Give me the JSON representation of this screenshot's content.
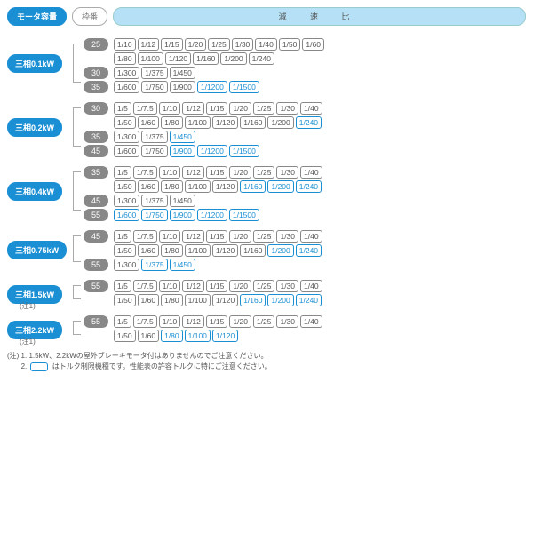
{
  "header": {
    "motor": "モータ容量",
    "frame": "枠番",
    "ratio": "減 速 比"
  },
  "groups": [
    {
      "motor": "三相0.1kW",
      "motorTop": 18,
      "note1": false,
      "connTop": 6,
      "connH": 42,
      "frames": [
        {
          "num": "25",
          "rows": [
            [
              {
                "v": "1/10"
              },
              {
                "v": "1/12"
              },
              {
                "v": "1/15"
              },
              {
                "v": "1/20"
              },
              {
                "v": "1/25"
              },
              {
                "v": "1/30"
              },
              {
                "v": "1/40"
              },
              {
                "v": "1/50"
              },
              {
                "v": "1/60"
              }
            ],
            [
              {
                "v": "1/80"
              },
              {
                "v": "1/100"
              },
              {
                "v": "1/120"
              },
              {
                "v": "1/160"
              },
              {
                "v": "1/200"
              },
              {
                "v": "1/240"
              }
            ]
          ]
        },
        {
          "num": "30",
          "rows": [
            [
              {
                "v": "1/300"
              },
              {
                "v": "1/375"
              },
              {
                "v": "1/450"
              }
            ]
          ]
        },
        {
          "num": "35",
          "rows": [
            [
              {
                "v": "1/600"
              },
              {
                "v": "1/750"
              },
              {
                "v": "1/900"
              },
              {
                "v": "1/1200",
                "h": 1
              },
              {
                "v": "1/1500",
                "h": 1
              }
            ]
          ]
        }
      ]
    },
    {
      "motor": "三相0.2kW",
      "motorTop": 18,
      "note1": false,
      "connTop": 6,
      "connH": 42,
      "frames": [
        {
          "num": "30",
          "rows": [
            [
              {
                "v": "1/5"
              },
              {
                "v": "1/7.5"
              },
              {
                "v": "1/10"
              },
              {
                "v": "1/12"
              },
              {
                "v": "1/15"
              },
              {
                "v": "1/20"
              },
              {
                "v": "1/25"
              },
              {
                "v": "1/30"
              },
              {
                "v": "1/40"
              }
            ],
            [
              {
                "v": "1/50"
              },
              {
                "v": "1/60"
              },
              {
                "v": "1/80"
              },
              {
                "v": "1/100"
              },
              {
                "v": "1/120"
              },
              {
                "v": "1/160"
              },
              {
                "v": "1/200"
              },
              {
                "v": "1/240",
                "h": 1
              }
            ]
          ]
        },
        {
          "num": "35",
          "rows": [
            [
              {
                "v": "1/300"
              },
              {
                "v": "1/375"
              },
              {
                "v": "1/450",
                "h": 1
              }
            ]
          ]
        },
        {
          "num": "45",
          "rows": [
            [
              {
                "v": "1/600"
              },
              {
                "v": "1/750"
              },
              {
                "v": "1/900",
                "h": 1
              },
              {
                "v": "1/1200",
                "h": 1
              },
              {
                "v": "1/1500",
                "h": 1
              }
            ]
          ]
        }
      ]
    },
    {
      "motor": "三相0.4kW",
      "motorTop": 18,
      "note1": false,
      "connTop": 6,
      "connH": 42,
      "frames": [
        {
          "num": "35",
          "rows": [
            [
              {
                "v": "1/5"
              },
              {
                "v": "1/7.5"
              },
              {
                "v": "1/10"
              },
              {
                "v": "1/12"
              },
              {
                "v": "1/15"
              },
              {
                "v": "1/20"
              },
              {
                "v": "1/25"
              },
              {
                "v": "1/30"
              },
              {
                "v": "1/40"
              }
            ],
            [
              {
                "v": "1/50"
              },
              {
                "v": "1/60"
              },
              {
                "v": "1/80"
              },
              {
                "v": "1/100"
              },
              {
                "v": "1/120"
              },
              {
                "v": "1/160",
                "h": 1
              },
              {
                "v": "1/200",
                "h": 1
              },
              {
                "v": "1/240",
                "h": 1
              }
            ]
          ]
        },
        {
          "num": "45",
          "rows": [
            [
              {
                "v": "1/300"
              },
              {
                "v": "1/375"
              },
              {
                "v": "1/450"
              }
            ]
          ]
        },
        {
          "num": "55",
          "rows": [
            [
              {
                "v": "1/600",
                "h": 1
              },
              {
                "v": "1/750",
                "h": 1
              },
              {
                "v": "1/900",
                "h": 1
              },
              {
                "v": "1/1200",
                "h": 1
              },
              {
                "v": "1/1500",
                "h": 1
              }
            ]
          ]
        }
      ]
    },
    {
      "motor": "三相0.75kW",
      "motorTop": 12,
      "note1": false,
      "connTop": 6,
      "connH": 28,
      "frames": [
        {
          "num": "45",
          "rows": [
            [
              {
                "v": "1/5"
              },
              {
                "v": "1/7.5"
              },
              {
                "v": "1/10"
              },
              {
                "v": "1/12"
              },
              {
                "v": "1/15"
              },
              {
                "v": "1/20"
              },
              {
                "v": "1/25"
              },
              {
                "v": "1/30"
              },
              {
                "v": "1/40"
              }
            ],
            [
              {
                "v": "1/50"
              },
              {
                "v": "1/60"
              },
              {
                "v": "1/80"
              },
              {
                "v": "1/100"
              },
              {
                "v": "1/120"
              },
              {
                "v": "1/160"
              },
              {
                "v": "1/200",
                "h": 1
              },
              {
                "v": "1/240",
                "h": 1
              }
            ]
          ]
        },
        {
          "num": "55",
          "rows": [
            [
              {
                "v": "1/300"
              },
              {
                "v": "1/375",
                "h": 1
              },
              {
                "v": "1/450",
                "h": 1
              }
            ]
          ]
        }
      ]
    },
    {
      "motor": "三相1.5kW",
      "motorTop": 6,
      "note1": true,
      "connTop": 6,
      "connH": 14,
      "frames": [
        {
          "num": "55",
          "rows": [
            [
              {
                "v": "1/5"
              },
              {
                "v": "1/7.5"
              },
              {
                "v": "1/10"
              },
              {
                "v": "1/12"
              },
              {
                "v": "1/15"
              },
              {
                "v": "1/20"
              },
              {
                "v": "1/25"
              },
              {
                "v": "1/30"
              },
              {
                "v": "1/40"
              }
            ],
            [
              {
                "v": "1/50"
              },
              {
                "v": "1/60"
              },
              {
                "v": "1/80"
              },
              {
                "v": "1/100"
              },
              {
                "v": "1/120"
              },
              {
                "v": "1/160",
                "h": 1
              },
              {
                "v": "1/200",
                "h": 1
              },
              {
                "v": "1/240",
                "h": 1
              }
            ]
          ]
        }
      ]
    },
    {
      "motor": "三相2.2kW",
      "motorTop": 6,
      "note1": true,
      "connTop": 6,
      "connH": 14,
      "frames": [
        {
          "num": "55",
          "rows": [
            [
              {
                "v": "1/5"
              },
              {
                "v": "1/7.5"
              },
              {
                "v": "1/10"
              },
              {
                "v": "1/12"
              },
              {
                "v": "1/15"
              },
              {
                "v": "1/20"
              },
              {
                "v": "1/25"
              },
              {
                "v": "1/30"
              },
              {
                "v": "1/40"
              }
            ],
            [
              {
                "v": "1/50"
              },
              {
                "v": "1/60"
              },
              {
                "v": "1/80",
                "h": 1
              },
              {
                "v": "1/100",
                "h": 1
              },
              {
                "v": "1/120",
                "h": 1
              }
            ]
          ]
        }
      ]
    }
  ],
  "notes": {
    "n1": "(注) 1. 1.5kW、2.2kWの屋外ブレーキモータ付はありませんのでご注意ください。",
    "n2a": "2. ",
    "n2b": " はトルク制限機種です。性能表の許容トルクに特にご注意ください。",
    "note1Label": "(注1)"
  }
}
